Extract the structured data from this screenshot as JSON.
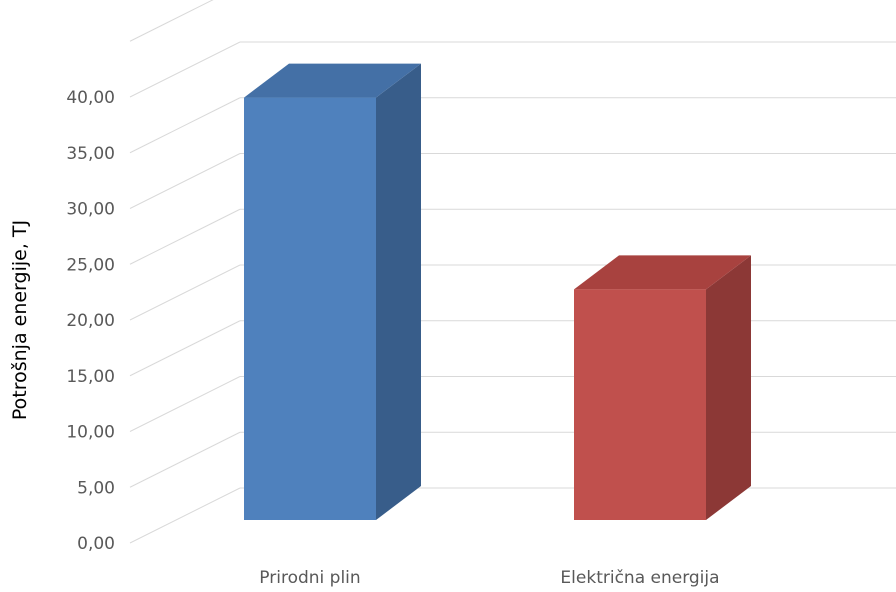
{
  "chart_data": {
    "type": "bar",
    "title": "",
    "xlabel": "",
    "ylabel": "Potrošnja energije, TJ",
    "categories": [
      "Prirodni plin",
      "Električna energija"
    ],
    "values": [
      39.5,
      22.3
    ],
    "ylim": [
      0,
      40
    ],
    "y_ticks": [
      "0,00",
      "5,00",
      "10,00",
      "15,00",
      "20,00",
      "25,00",
      "30,00",
      "35,00",
      "40,00"
    ],
    "grid": true,
    "style": "3d-column",
    "colors": {
      "bars": [
        "#4F81BD",
        "#C0504D"
      ],
      "bar_sides": [
        "#385D8A",
        "#8C3836"
      ],
      "bar_tops": [
        "#4470A6",
        "#A8423F"
      ],
      "grid": "#D9D9D9",
      "tick_text": "#595959"
    }
  }
}
